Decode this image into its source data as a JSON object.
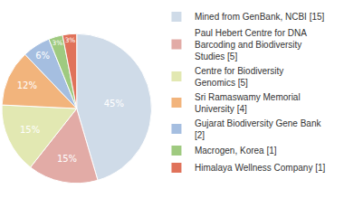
{
  "chart_data": {
    "type": "pie",
    "categories": [
      "Mined from GenBank, NCBI [15]",
      "Paul Hebert Centre for DNA Barcoding and Biodiversity Studies [5]",
      "Centre for Biodiversity Genomics [5]",
      "Sri Ramaswamy Memorial University [4]",
      "Gujarat Biodiversity Gene Bank [2]",
      "Macrogen, Korea [1]",
      "Himalaya Wellness Company [1]"
    ],
    "values": [
      45,
      15,
      15,
      12,
      6,
      3,
      3
    ],
    "value_labels": [
      "45%",
      "15%",
      "15%",
      "12%",
      "6%",
      "3%",
      "3%"
    ],
    "colors": [
      "#cfdbe8",
      "#e2aba6",
      "#e2e8b2",
      "#f2b47c",
      "#a5bee0",
      "#9fca80",
      "#e0725a"
    ],
    "data_labels": true,
    "legend": "right"
  }
}
